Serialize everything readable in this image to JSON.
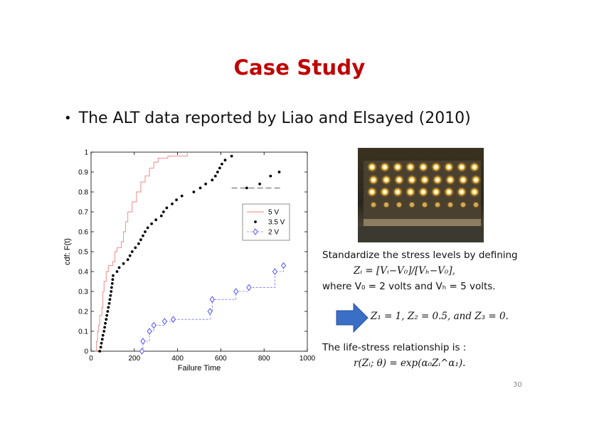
{
  "slide": {
    "title": "Case Study",
    "bullet": "The ALT data reported by Liao and Elsayed (2010)",
    "page_number": "30"
  },
  "text": {
    "standardize": "Standardize the stress levels by defining",
    "zi_formula": "Zᵢ = [Vᵢ−V₀]/[Vₕ−V₀],",
    "where_line": "where V₀ = 2 volts and Vₕ = 5 volts.",
    "z_values": "Z₁ = 1, Z₂ = 0.5, and Z₃ = 0.",
    "lifestress": "The life-stress relationship is :",
    "r_formula": "r(Zᵢ; θ) = exp(α₀Zᵢ^α₁)."
  },
  "colors": {
    "title": "#c00000",
    "series_5v": "#f08080",
    "series_35v": "#000000",
    "series_2v": "#4040ff",
    "arrow": "#3a6fc7"
  },
  "chart_data": {
    "type": "scatter",
    "xlabel": "Failure Time",
    "ylabel": "cdf: F(t)",
    "xlim": [
      0,
      1000
    ],
    "ylim": [
      0,
      1
    ],
    "xticks": [
      "0",
      "200",
      "400",
      "600",
      "800",
      "1000"
    ],
    "yticks": [
      "0",
      "0.1",
      "0.2",
      "0.3",
      "0.4",
      "0.5",
      "0.6",
      "0.7",
      "0.8",
      "0.9",
      "1"
    ],
    "legend_position": "top-right",
    "series": [
      {
        "name": "5 V",
        "style": "step-line",
        "points": [
          [
            20,
            0.0
          ],
          [
            25,
            0.05
          ],
          [
            30,
            0.1
          ],
          [
            35,
            0.13
          ],
          [
            40,
            0.18
          ],
          [
            50,
            0.22
          ],
          [
            55,
            0.3
          ],
          [
            60,
            0.35
          ],
          [
            70,
            0.4
          ],
          [
            80,
            0.43
          ],
          [
            100,
            0.45
          ],
          [
            110,
            0.5
          ],
          [
            120,
            0.52
          ],
          [
            140,
            0.55
          ],
          [
            150,
            0.6
          ],
          [
            160,
            0.65
          ],
          [
            170,
            0.7
          ],
          [
            190,
            0.75
          ],
          [
            210,
            0.8
          ],
          [
            230,
            0.85
          ],
          [
            250,
            0.88
          ],
          [
            270,
            0.92
          ],
          [
            290,
            0.95
          ],
          [
            310,
            0.97
          ],
          [
            355,
            0.98
          ],
          [
            445,
            1.0
          ]
        ]
      },
      {
        "name": "3.5 V",
        "style": "dots-dashed",
        "points": [
          [
            40,
            0.0
          ],
          [
            45,
            0.02
          ],
          [
            48,
            0.04
          ],
          [
            52,
            0.06
          ],
          [
            55,
            0.08
          ],
          [
            60,
            0.1
          ],
          [
            63,
            0.12
          ],
          [
            66,
            0.14
          ],
          [
            70,
            0.16
          ],
          [
            73,
            0.18
          ],
          [
            77,
            0.2
          ],
          [
            80,
            0.22
          ],
          [
            84,
            0.24
          ],
          [
            87,
            0.26
          ],
          [
            90,
            0.28
          ],
          [
            93,
            0.3
          ],
          [
            95,
            0.32
          ],
          [
            98,
            0.34
          ],
          [
            100,
            0.36
          ],
          [
            102,
            0.38
          ],
          [
            120,
            0.4
          ],
          [
            130,
            0.42
          ],
          [
            150,
            0.44
          ],
          [
            170,
            0.46
          ],
          [
            180,
            0.48
          ],
          [
            190,
            0.5
          ],
          [
            205,
            0.52
          ],
          [
            220,
            0.54
          ],
          [
            230,
            0.56
          ],
          [
            240,
            0.58
          ],
          [
            250,
            0.6
          ],
          [
            262,
            0.62
          ],
          [
            280,
            0.64
          ],
          [
            300,
            0.66
          ],
          [
            325,
            0.68
          ],
          [
            335,
            0.7
          ],
          [
            350,
            0.72
          ],
          [
            375,
            0.74
          ],
          [
            395,
            0.76
          ],
          [
            420,
            0.78
          ],
          [
            475,
            0.8
          ],
          [
            505,
            0.82
          ],
          [
            530,
            0.84
          ],
          [
            560,
            0.86
          ],
          [
            575,
            0.88
          ],
          [
            585,
            0.9
          ],
          [
            595,
            0.92
          ],
          [
            605,
            0.94
          ],
          [
            620,
            0.96
          ],
          [
            650,
            0.98
          ],
          [
            720,
            0.82
          ],
          [
            780,
            0.84
          ],
          [
            830,
            0.88
          ],
          [
            870,
            0.9
          ]
        ]
      },
      {
        "name": "2 V",
        "style": "diamond-dashed",
        "points": [
          [
            235,
            0.0
          ],
          [
            240,
            0.05
          ],
          [
            270,
            0.1
          ],
          [
            290,
            0.13
          ],
          [
            340,
            0.15
          ],
          [
            380,
            0.16
          ],
          [
            550,
            0.2
          ],
          [
            560,
            0.26
          ],
          [
            670,
            0.3
          ],
          [
            730,
            0.32
          ],
          [
            850,
            0.4
          ],
          [
            890,
            0.43
          ]
        ]
      }
    ]
  }
}
